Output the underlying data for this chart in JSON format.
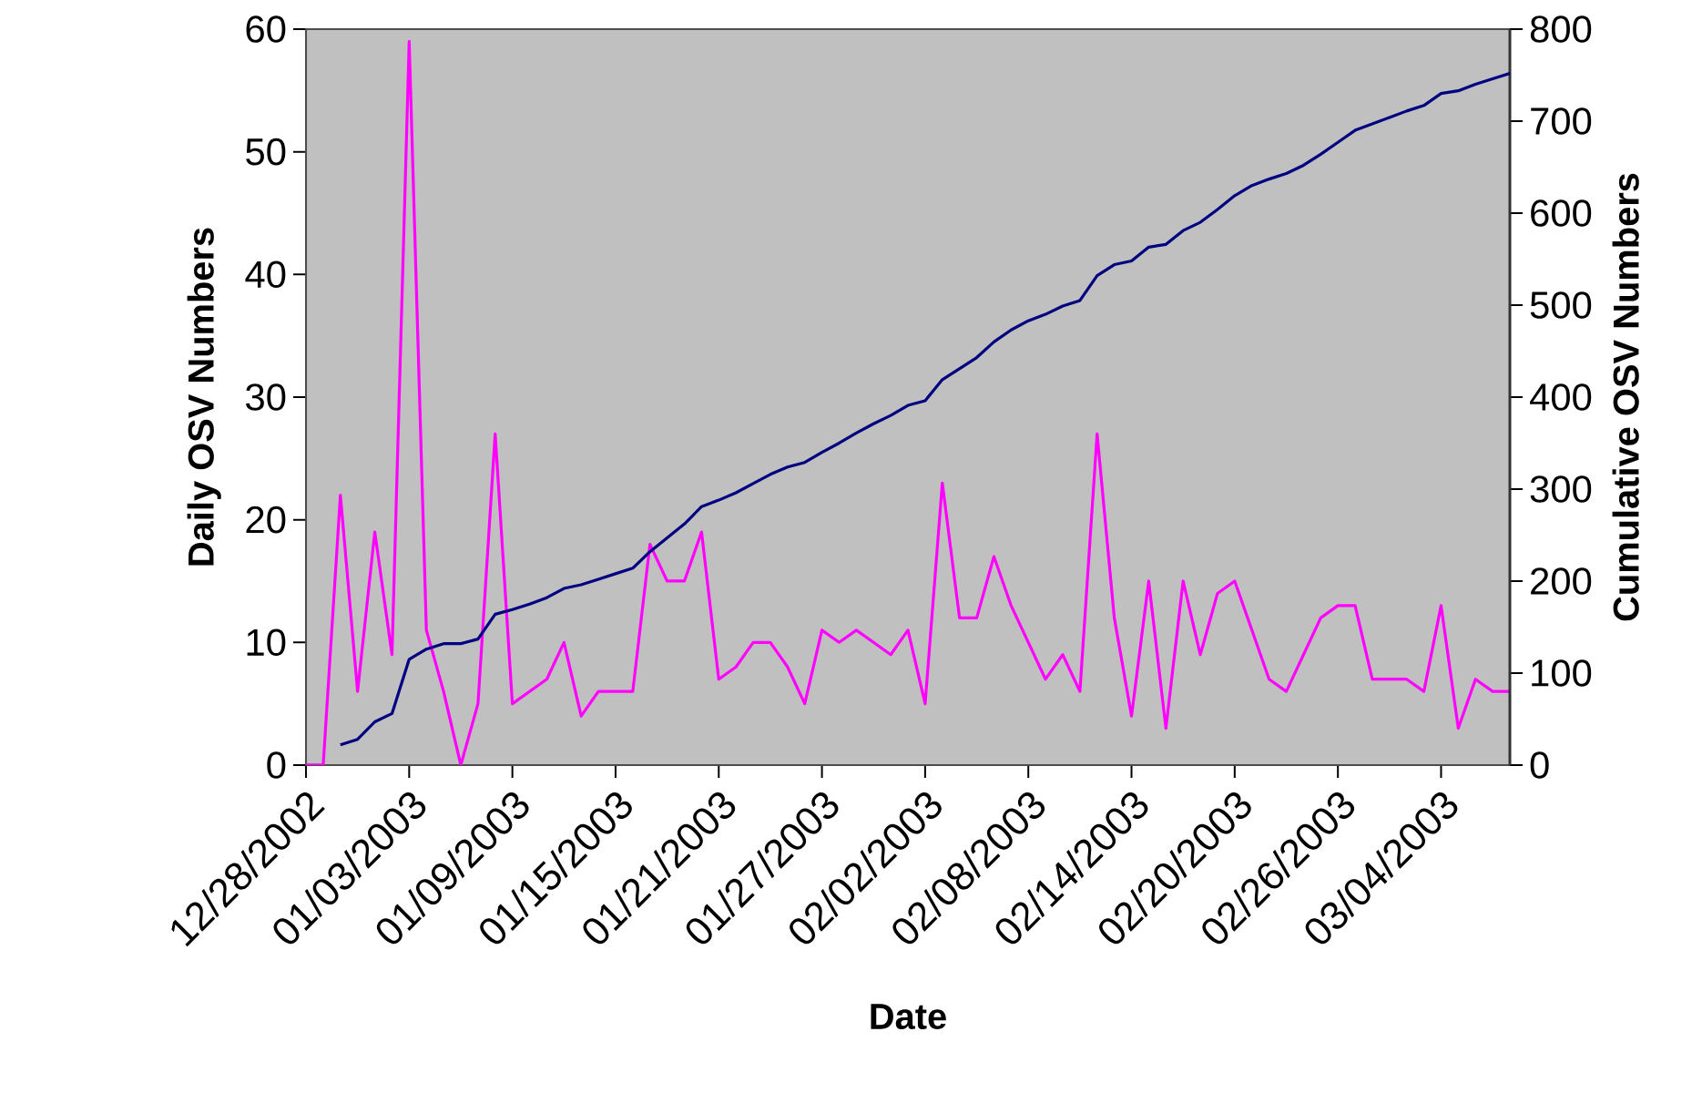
{
  "chart_data": {
    "type": "line",
    "xlabel": "Date",
    "ylabel": "Daily OSV Numbers",
    "y2label": "Cumulative OSV Numbers",
    "x": [
      "2002-12-28",
      "2002-12-29",
      "2002-12-30",
      "2002-12-31",
      "2003-01-01",
      "2003-01-02",
      "2003-01-03",
      "2003-01-04",
      "2003-01-05",
      "2003-01-06",
      "2003-01-07",
      "2003-01-08",
      "2003-01-09",
      "2003-01-10",
      "2003-01-11",
      "2003-01-12",
      "2003-01-13",
      "2003-01-14",
      "2003-01-15",
      "2003-01-16",
      "2003-01-17",
      "2003-01-18",
      "2003-01-19",
      "2003-01-20",
      "2003-01-21",
      "2003-01-22",
      "2003-01-23",
      "2003-01-24",
      "2003-01-25",
      "2003-01-26",
      "2003-01-27",
      "2003-01-28",
      "2003-01-29",
      "2003-01-30",
      "2003-01-31",
      "2003-02-01",
      "2003-02-02",
      "2003-02-03",
      "2003-02-04",
      "2003-02-05",
      "2003-02-06",
      "2003-02-07",
      "2003-02-08",
      "2003-02-09",
      "2003-02-10",
      "2003-02-11",
      "2003-02-12",
      "2003-02-13",
      "2003-02-14",
      "2003-02-15",
      "2003-02-16",
      "2003-02-17",
      "2003-02-18",
      "2003-02-19",
      "2003-02-20",
      "2003-02-21",
      "2003-02-22",
      "2003-02-23",
      "2003-02-24",
      "2003-02-25",
      "2003-02-26",
      "2003-02-27",
      "2003-02-28",
      "2003-03-01",
      "2003-03-02",
      "2003-03-03",
      "2003-03-04",
      "2003-03-05",
      "2003-03-06",
      "2003-03-07",
      "2003-03-08"
    ],
    "series": [
      {
        "color": "#ff00ff",
        "values": [
          0,
          0,
          22,
          6,
          19,
          9,
          59,
          11,
          6,
          0,
          5,
          27,
          5,
          6,
          7,
          10,
          4,
          6,
          6,
          6,
          18,
          15,
          15,
          19,
          7,
          8,
          10,
          10,
          8,
          5,
          11,
          10,
          11,
          10,
          9,
          11,
          5,
          23,
          12,
          12,
          17,
          13,
          10,
          7,
          9,
          6,
          27,
          12,
          4,
          15,
          3,
          15,
          9,
          14,
          15,
          11,
          7,
          6,
          9,
          12,
          13,
          13,
          7,
          7,
          7,
          6,
          13,
          3,
          7,
          6,
          6
        ]
      },
      {
        "color": "#000080",
        "axis": "y2",
        "values": [
          null,
          null,
          22,
          28,
          47,
          56,
          115,
          126,
          132,
          132,
          137,
          164,
          169,
          175,
          182,
          192,
          196,
          202,
          208,
          214,
          232,
          247,
          262,
          281,
          288,
          296,
          306,
          316,
          324,
          329,
          340,
          350,
          361,
          371,
          380,
          391,
          396,
          419,
          431,
          443,
          460,
          473,
          483,
          490,
          499,
          505,
          532,
          544,
          548,
          563,
          566,
          581,
          590,
          604,
          619,
          630,
          637,
          643,
          652,
          664,
          677,
          690,
          697,
          704,
          711,
          717,
          730,
          733,
          740,
          746,
          752
        ]
      }
    ],
    "xlim": [
      "2002-12-28",
      "2003-03-08"
    ],
    "xticks": [
      {
        "value": "2002-12-28",
        "label": "12/28/2002"
      },
      {
        "value": "2003-01-03",
        "label": "01/03/2003"
      },
      {
        "value": "2003-01-09",
        "label": "01/09/2003"
      },
      {
        "value": "2003-01-15",
        "label": "01/15/2003"
      },
      {
        "value": "2003-01-21",
        "label": "01/21/2003"
      },
      {
        "value": "2003-01-27",
        "label": "01/27/2003"
      },
      {
        "value": "2003-02-02",
        "label": "02/02/2003"
      },
      {
        "value": "2003-02-08",
        "label": "02/08/2003"
      },
      {
        "value": "2003-02-14",
        "label": "02/14/2003"
      },
      {
        "value": "2003-02-20",
        "label": "02/20/2003"
      },
      {
        "value": "2003-02-26",
        "label": "02/26/2003"
      },
      {
        "value": "2003-03-04",
        "label": "03/04/2003"
      }
    ],
    "ylim": [
      0,
      60
    ],
    "yticks": [
      0,
      10,
      20,
      30,
      40,
      50,
      60
    ],
    "y2lim": [
      0,
      800
    ],
    "y2ticks": [
      0,
      100,
      200,
      300,
      400,
      500,
      600,
      700,
      800
    ]
  }
}
